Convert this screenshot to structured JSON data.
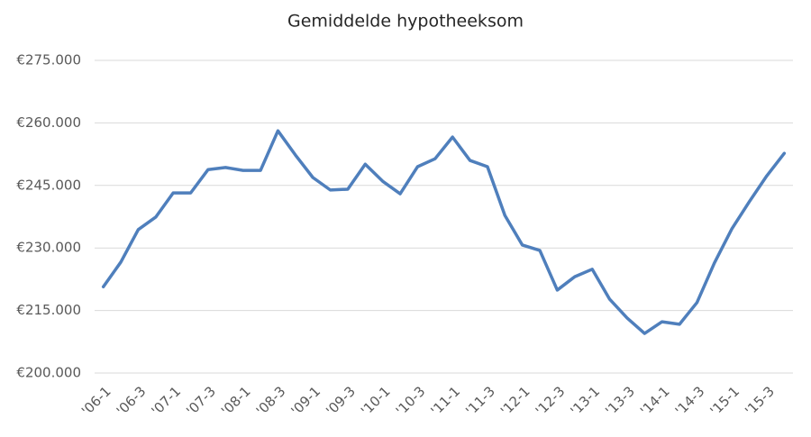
{
  "chart_data": {
    "type": "line",
    "title": "Gemiddelde hypotheeksom",
    "categories": [
      "'06-1",
      null,
      "'06-3",
      null,
      "'07-1",
      null,
      "'07-3",
      null,
      "'08-1",
      null,
      "'08-3",
      null,
      "'09-1",
      null,
      "'09-3",
      null,
      "'10-1",
      null,
      "'10-3",
      null,
      "'11-1",
      null,
      "'11-3",
      null,
      "'12-1",
      null,
      "'12-3",
      null,
      "'13-1",
      null,
      "'13-3",
      null,
      "'14-1",
      null,
      "'14-3",
      null,
      "'15-1",
      null,
      "'15-3",
      null
    ],
    "series": [
      {
        "color": "#4f7fbc",
        "values": [
          220700,
          226600,
          234400,
          237400,
          243200,
          243200,
          248800,
          249300,
          248600,
          248600,
          258100,
          252300,
          246900,
          243900,
          244100,
          250100,
          246000,
          243000,
          249500,
          251400,
          256600,
          251000,
          249500,
          237800,
          230700,
          229400,
          219900,
          223100,
          224900,
          217700,
          213200,
          209500,
          212300,
          211700,
          216900,
          226400,
          234600,
          241100,
          247300,
          252700
        ]
      }
    ],
    "ylim": [
      200000,
      275000
    ],
    "yticks": [
      {
        "value": 200000,
        "label": "€200.000"
      },
      {
        "value": 215000,
        "label": "€215.000"
      },
      {
        "value": 230000,
        "label": "€230.000"
      },
      {
        "value": 245000,
        "label": "€245.000"
      },
      {
        "value": 260000,
        "label": "€260.000"
      },
      {
        "value": 275000,
        "label": "€275.000"
      }
    ],
    "grid": true
  }
}
